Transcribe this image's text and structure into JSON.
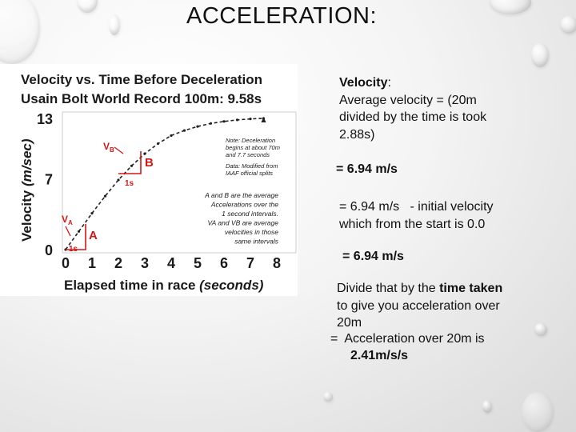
{
  "slide": {
    "title": "ACCELERATION:",
    "velocity_heading": "Velocity",
    "velocity_colon": ":",
    "para1": [
      "Average velocity = (20m",
      "divided by the time is took",
      "2.88s)"
    ],
    "result1": "= 6.94 m/s",
    "para2": [
      "= 6.94 m/s   - initial velocity",
      "which from the start is 0.0"
    ],
    "result2": "= 6.94 m/s",
    "para3_a": "Divide that by the ",
    "para3_bold": "time taken",
    "para3_rest": [
      "to give you acceleration over",
      "20m"
    ],
    "para4": "=  Acceleration over 20m is",
    "para4_result": "2.41m/s/s"
  },
  "chart_data": {
    "type": "line",
    "title": [
      "Velocity vs. Time Before Deceleration",
      "Usain Bolt World Record 100m:  9.58s"
    ],
    "xlabel": "Elapsed time in race (seconds)",
    "xlabel_main": "Elapsed time in race",
    "xlabel_unit": "(seconds)",
    "ylabel": "Velocity (m/sec)",
    "ylabel_main": "Velocity",
    "ylabel_unit": "(m/sec)",
    "xticks": [
      "0",
      "1",
      "2",
      "3",
      "4",
      "5",
      "6",
      "7",
      "8"
    ],
    "yticks": [
      "0",
      "7",
      "13"
    ],
    "xlim": [
      0,
      8
    ],
    "ylim": [
      0,
      13
    ],
    "series": [
      {
        "x": [
          0,
          0.5,
          1,
          1.5,
          2,
          2.5,
          3,
          3.5,
          4,
          4.5,
          5,
          5.5,
          6,
          6.5,
          7,
          7.5
        ],
        "y": [
          0,
          1.8,
          3.6,
          5.3,
          6.9,
          8.3,
          9.5,
          10.5,
          11.3,
          11.8,
          12.2,
          12.5,
          12.7,
          12.85,
          12.95,
          13.0
        ]
      }
    ],
    "annotations": {
      "vb": "V",
      "vb_sub": "B",
      "b": "B",
      "interval_b": "1s",
      "va": "V",
      "va_sub": "A",
      "a": "A",
      "interval_a": "1s",
      "note": [
        "Note: Deceleration",
        "begins at about 70m",
        "and 7.7 seconds"
      ],
      "data_note": [
        "Data:  Modified from",
        "IAAF official splits"
      ],
      "legend": [
        "A and B are the average",
        "Accelerations over the",
        "1 second intervals.",
        "VA and VB are average",
        "velocities in those",
        "same intervals"
      ]
    },
    "colors": {
      "line": "#222222",
      "annotation": "#d01818",
      "text": "#1a1a1a"
    }
  }
}
